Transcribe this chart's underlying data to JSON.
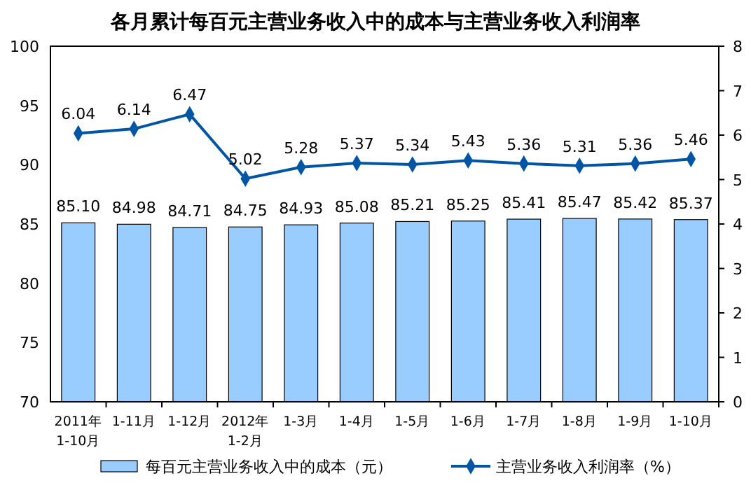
{
  "chart_data": {
    "type": "bar",
    "title": "各月累计每百元主营业务收入中的成本与主营业务收入利润率",
    "categories": [
      "2011年\n1-10月",
      "1-11月",
      "1-12月",
      "2012年\n1-2月",
      "1-3月",
      "1-4月",
      "1-5月",
      "1-6月",
      "1-7月",
      "1-8月",
      "1-9月",
      "1-10月"
    ],
    "series": [
      {
        "name": "每百元主营业务收入中的成本（元）",
        "color": "#99ccff",
        "values": [
          85.1,
          84.98,
          84.71,
          84.75,
          84.93,
          85.08,
          85.21,
          85.25,
          85.41,
          85.47,
          85.42,
          85.37
        ],
        "value_labels": [
          "85.10",
          "84.98",
          "84.71",
          "84.75",
          "84.93",
          "85.08",
          "85.21",
          "85.25",
          "85.41",
          "85.47",
          "85.42",
          "85.37"
        ]
      },
      {
        "name": "主营业务收入利润率（%）",
        "type": "line",
        "axis": "y2",
        "color": "#0055a5",
        "values": [
          6.04,
          6.14,
          6.47,
          5.02,
          5.28,
          5.37,
          5.34,
          5.43,
          5.36,
          5.31,
          5.36,
          5.46
        ],
        "value_labels": [
          "6.04",
          "6.14",
          "6.47",
          "5.02",
          "5.28",
          "5.37",
          "5.34",
          "5.43",
          "5.36",
          "5.31",
          "5.36",
          "5.46"
        ]
      }
    ],
    "ylim": [
      70,
      100
    ],
    "yticks": [
      70,
      75,
      80,
      85,
      90,
      95,
      100
    ],
    "y2lim": [
      0,
      8
    ],
    "y2ticks": [
      0,
      1,
      2,
      3,
      4,
      5,
      6,
      7,
      8
    ],
    "marker": "diamond",
    "legend": "bottom",
    "grid": false
  }
}
